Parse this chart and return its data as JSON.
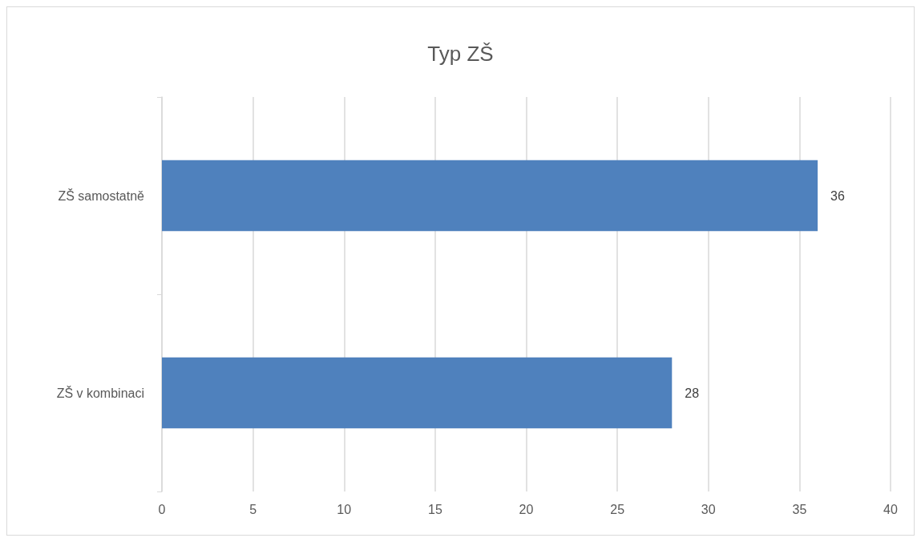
{
  "chart_data": {
    "type": "bar",
    "orientation": "horizontal",
    "title": "Typ ZŠ",
    "categories": [
      "ZŠ samostatně",
      "ZŠ v kombinaci"
    ],
    "values": [
      36,
      28
    ],
    "color": "#4f81bd",
    "data_labels": true,
    "xlim": [
      0,
      40
    ],
    "xticks": [
      0,
      5,
      10,
      15,
      20,
      25,
      30,
      35,
      40
    ],
    "grid": "x"
  }
}
